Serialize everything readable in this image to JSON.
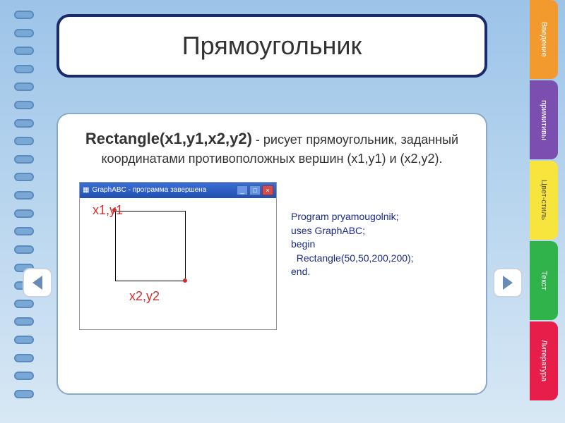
{
  "title": "Прямоугольник",
  "command": "Rectangle(x1,y1,x2,y2)",
  "description_tail": " - рисует прямоугольник, заданный координатами противоположных вершин (x1,y1) и (x2,y2).",
  "window": {
    "title": "GraphABC - программа завершена",
    "coord1": "x1,y1",
    "coord2": "x2,y2"
  },
  "code": {
    "l1": "Program pryamougolnik;",
    "l2": "uses GraphABC;",
    "l3": "begin",
    "l4": "  Rectangle(50,50,200,200);",
    "l5": "end."
  },
  "tabs": [
    {
      "label": "Введение",
      "color": "#f29a2e"
    },
    {
      "label": "примитивы",
      "color": "#7a4fb0"
    },
    {
      "label": "Цвет-стиль",
      "color": "#f7e43c"
    },
    {
      "label": "Текст",
      "color": "#2fb34a"
    },
    {
      "label": "Литература",
      "color": "#e81e4a"
    }
  ],
  "colors": {
    "title_border": "#1a2a6c",
    "code_color": "#1a2a8c",
    "coord_color": "#d03030"
  }
}
